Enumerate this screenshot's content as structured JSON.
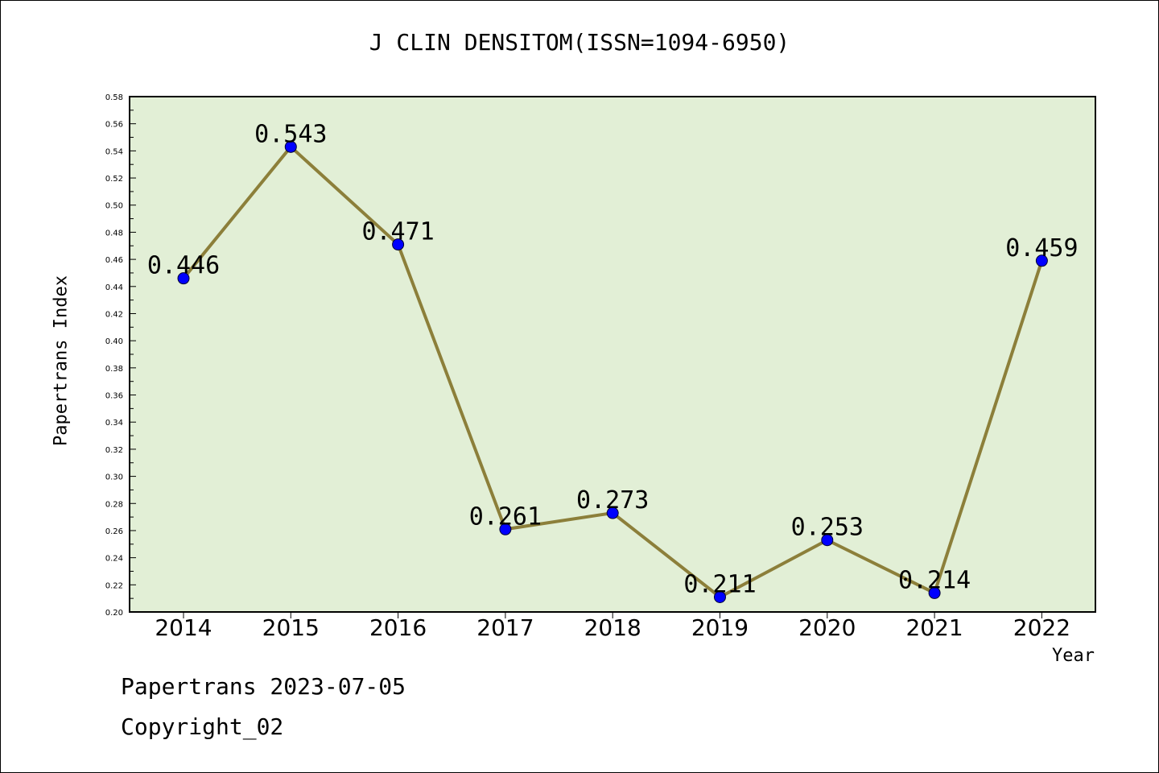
{
  "chart_data": {
    "type": "line",
    "title": "J CLIN DENSITOM(ISSN=1094-6950)",
    "xlabel": "Year",
    "ylabel": "Papertrans Index",
    "categories": [
      "2014",
      "2015",
      "2016",
      "2017",
      "2018",
      "2019",
      "2020",
      "2021",
      "2022"
    ],
    "series": [
      {
        "values": [
          0.446,
          0.543,
          0.471,
          0.261,
          0.273,
          0.211,
          0.253,
          0.214,
          0.459
        ],
        "data_labels": [
          "0.446",
          "0.543",
          "0.471",
          "0.261",
          "0.273",
          "0.211",
          "0.253",
          "0.214",
          "0.459"
        ]
      }
    ],
    "ylim": [
      0.2,
      0.58
    ],
    "yticks": [
      "0.20",
      "0.22",
      "0.24",
      "0.26",
      "0.28",
      "0.30",
      "0.32",
      "0.34",
      "0.36",
      "0.38",
      "0.40",
      "0.42",
      "0.44",
      "0.46",
      "0.48",
      "0.50",
      "0.52",
      "0.54",
      "0.56",
      "0.58"
    ],
    "grid": false,
    "legend": "none",
    "colors": {
      "plot_background": "#e2efd6",
      "line": "#8c7f3a",
      "marker": "#0000ff"
    }
  },
  "footer": {
    "line1": "Papertrans 2023-07-05",
    "line2": "Copyright_02"
  }
}
